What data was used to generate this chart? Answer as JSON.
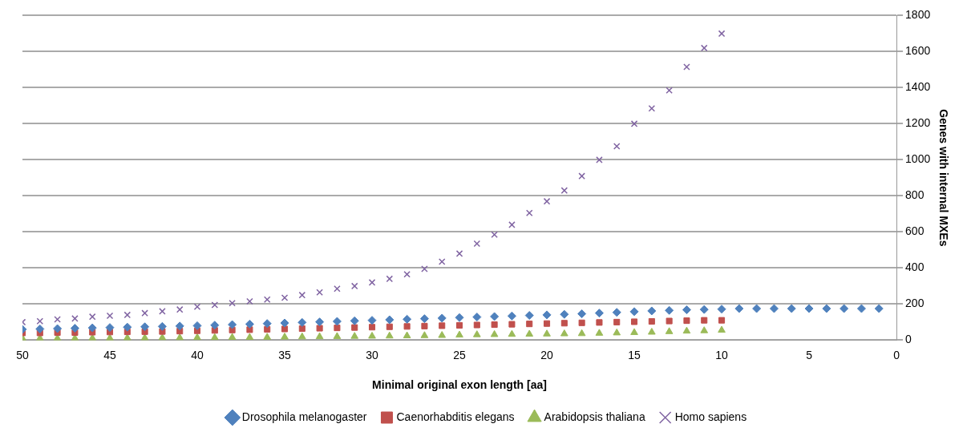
{
  "chart_data": {
    "type": "scatter",
    "xlabel": "Minimal original exon length [aa]",
    "ylabel": "Genes with internal MXEs",
    "xlim": [
      50,
      0
    ],
    "xticks": [
      50,
      45,
      40,
      35,
      30,
      25,
      20,
      15,
      10,
      5,
      0
    ],
    "ylim": [
      0,
      1800
    ],
    "yticks": [
      0,
      200,
      400,
      600,
      800,
      1000,
      1200,
      1400,
      1600,
      1800
    ],
    "grid": "y",
    "legend": "bottom",
    "series": [
      {
        "name": "Drosophila melanogaster",
        "color": "#4f81bd",
        "marker": "diamond",
        "x": [
          50,
          49,
          48,
          47,
          46,
          45,
          44,
          43,
          42,
          41,
          40,
          39,
          38,
          37,
          36,
          35,
          34,
          33,
          32,
          31,
          30,
          29,
          28,
          27,
          26,
          25,
          24,
          23,
          22,
          21,
          20,
          19,
          18,
          17,
          16,
          15,
          14,
          13,
          12,
          11,
          10,
          9,
          8,
          7,
          6,
          5,
          4,
          3,
          2,
          1
        ],
        "values": [
          60,
          62,
          64,
          66,
          68,
          70,
          72,
          74,
          76,
          78,
          80,
          83,
          86,
          89,
          92,
          95,
          98,
          101,
          104,
          107,
          110,
          113,
          116,
          119,
          122,
          125,
          128,
          131,
          134,
          137,
          140,
          143,
          146,
          150,
          154,
          158,
          162,
          165,
          168,
          170,
          172,
          175,
          175,
          175,
          175,
          175,
          175,
          175,
          175,
          175
        ]
      },
      {
        "name": "Caenorhabditis elegans",
        "color": "#c0504d",
        "marker": "square",
        "x": [
          50,
          49,
          48,
          47,
          46,
          45,
          44,
          43,
          42,
          41,
          40,
          39,
          38,
          37,
          36,
          35,
          34,
          33,
          32,
          31,
          30,
          29,
          28,
          27,
          26,
          25,
          24,
          23,
          22,
          21,
          20,
          19,
          18,
          17,
          16,
          15,
          14,
          13,
          12,
          11,
          10
        ],
        "values": [
          40,
          40,
          42,
          42,
          44,
          45,
          46,
          47,
          48,
          50,
          52,
          54,
          56,
          58,
          60,
          62,
          64,
          66,
          68,
          70,
          72,
          74,
          76,
          78,
          80,
          82,
          84,
          86,
          88,
          90,
          92,
          94,
          96,
          98,
          100,
          102,
          104,
          106,
          108,
          110,
          110
        ]
      },
      {
        "name": "Arabidopsis thaliana",
        "color": "#9bbb59",
        "marker": "triangle",
        "x": [
          50,
          49,
          48,
          47,
          46,
          45,
          44,
          43,
          42,
          41,
          40,
          39,
          38,
          37,
          36,
          35,
          34,
          33,
          32,
          31,
          30,
          29,
          28,
          27,
          26,
          25,
          24,
          23,
          22,
          21,
          20,
          19,
          18,
          17,
          16,
          15,
          14,
          13,
          12,
          11,
          10
        ],
        "values": [
          10,
          10,
          10,
          10,
          11,
          11,
          12,
          12,
          13,
          13,
          14,
          14,
          15,
          15,
          16,
          17,
          18,
          19,
          20,
          21,
          22,
          23,
          24,
          25,
          26,
          28,
          30,
          31,
          32,
          33,
          34,
          35,
          36,
          38,
          40,
          42,
          44,
          47,
          50,
          52,
          55
        ]
      },
      {
        "name": "Homo sapiens",
        "color": "#8064a2",
        "marker": "cross",
        "x": [
          50,
          49,
          48,
          47,
          46,
          45,
          44,
          43,
          42,
          41,
          40,
          39,
          38,
          37,
          36,
          35,
          34,
          33,
          32,
          31,
          30,
          29,
          28,
          27,
          26,
          25,
          24,
          23,
          22,
          21,
          20,
          19,
          18,
          17,
          16,
          15,
          14,
          13,
          12,
          11,
          10
        ],
        "values": [
          100,
          105,
          115,
          120,
          130,
          135,
          140,
          150,
          160,
          170,
          185,
          195,
          205,
          215,
          225,
          235,
          250,
          265,
          285,
          300,
          320,
          340,
          365,
          395,
          435,
          480,
          535,
          585,
          640,
          705,
          770,
          830,
          910,
          1000,
          1075,
          1200,
          1285,
          1385,
          1515,
          1620,
          1700
        ]
      }
    ]
  }
}
